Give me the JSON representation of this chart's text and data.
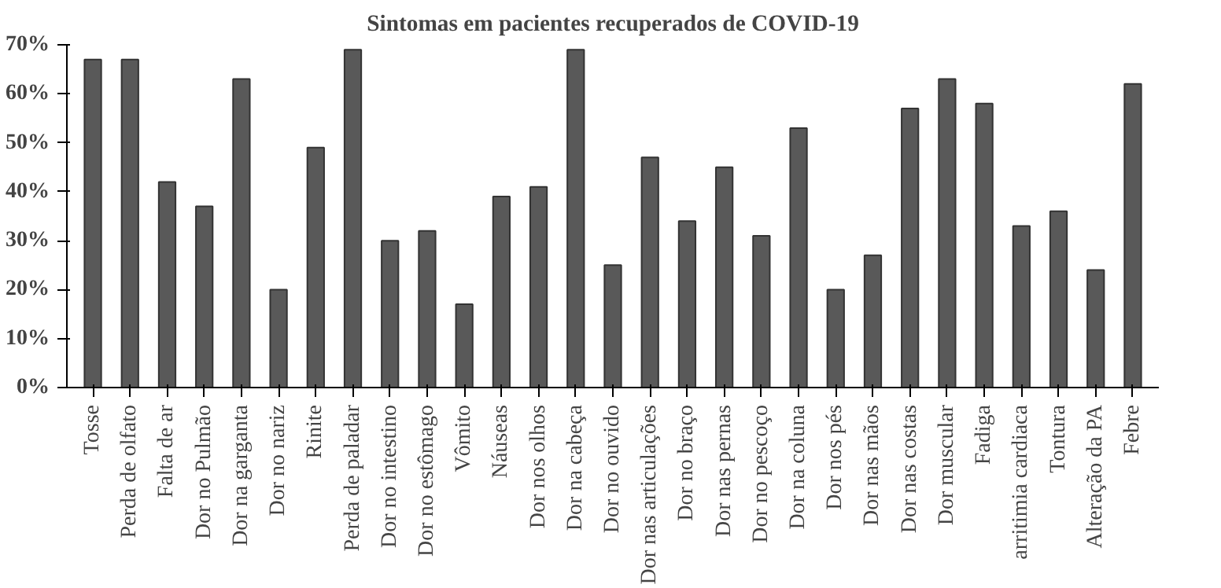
{
  "chart_data": {
    "type": "bar",
    "title": "Sintomas em pacientes recuperados de COVID-19",
    "categories": [
      "Tosse",
      "Perda de olfato",
      "Falta de ar",
      "Dor no Pulmão",
      "Dor na garganta",
      "Dor no nariz",
      "Rinite",
      "Perda de paladar",
      "Dor no intestino",
      "Dor no estômago",
      "Vômito",
      "Náuseas",
      "Dor nos olhos",
      "Dor na cabeça",
      "Dor no ouvido",
      "Dor nas articulações",
      "Dor no braço",
      "Dor nas pernas",
      "Dor no pescoço",
      "Dor na coluna",
      "Dor nos pés",
      "Dor nas mãos",
      "Dor nas costas",
      "Dor muscular",
      "Fadiga",
      "arritimia cardiaca",
      "Tontura",
      "Alteração da PA",
      "Febre"
    ],
    "values": [
      67,
      67,
      42,
      37,
      63,
      20,
      49,
      69,
      30,
      32,
      17,
      39,
      41,
      69,
      25,
      47,
      34,
      45,
      31,
      53,
      20,
      27,
      57,
      63,
      58,
      33,
      36,
      24,
      62
    ],
    "color": "#595959",
    "ylim": [
      0,
      70
    ],
    "yticks": [
      {
        "value": 0,
        "label": "0%"
      },
      {
        "value": 10,
        "label": "10%"
      },
      {
        "value": 20,
        "label": "20%"
      },
      {
        "value": 30,
        "label": "30%"
      },
      {
        "value": 40,
        "label": "40%"
      },
      {
        "value": 50,
        "label": "50%"
      },
      {
        "value": 60,
        "label": "60%"
      },
      {
        "value": 70,
        "label": "70%"
      }
    ],
    "grid": false
  }
}
